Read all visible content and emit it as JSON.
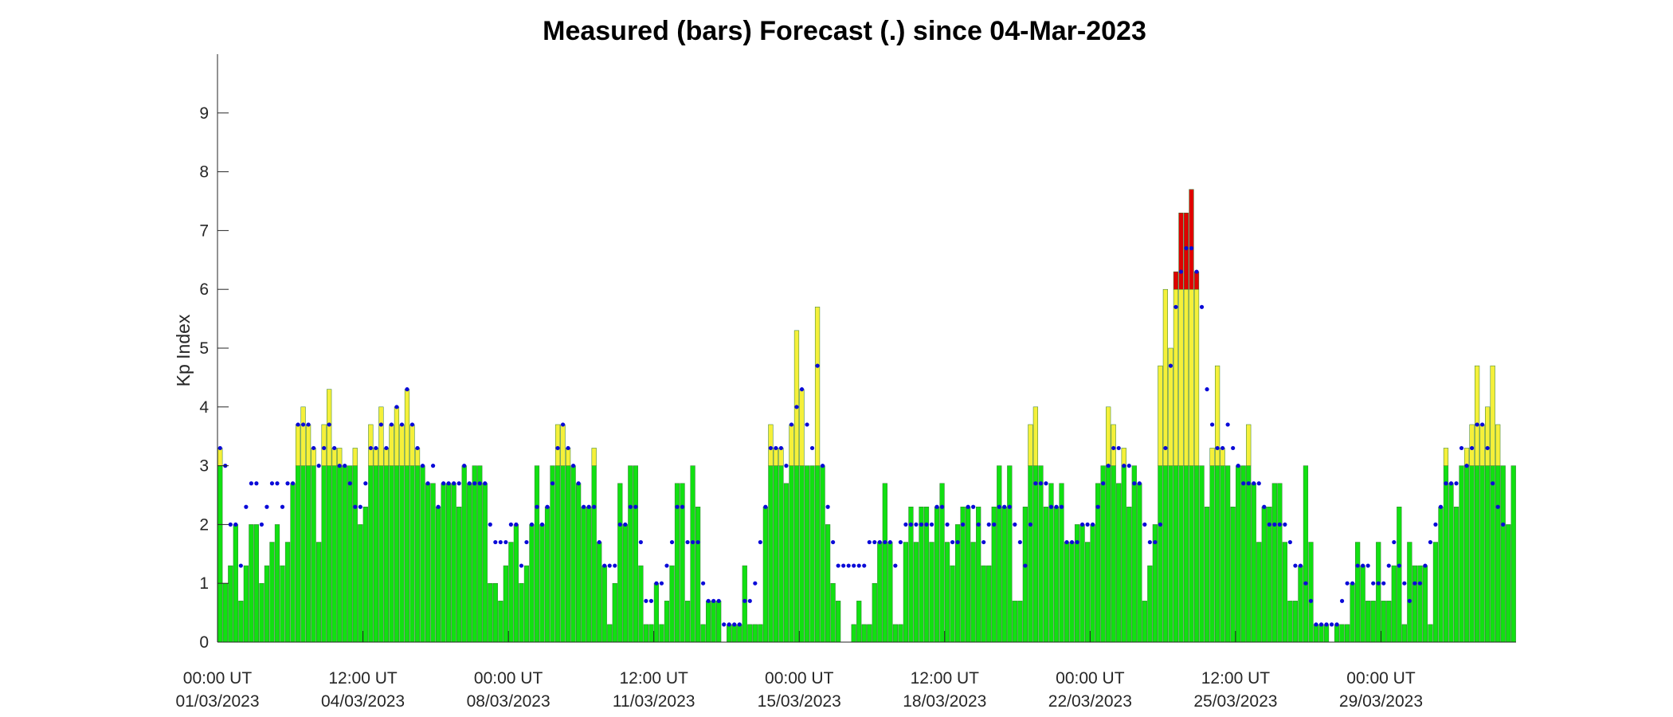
{
  "chart_data": {
    "type": "bar",
    "title": "Measured (bars) Forecast (.) since 04-Mar-2023",
    "xlabel": "",
    "ylabel": "Kp Index",
    "ylim": [
      0,
      10
    ],
    "yticks": [
      0,
      1,
      2,
      3,
      4,
      5,
      6,
      7,
      8,
      9
    ],
    "xlim_days": [
      0,
      31.25
    ],
    "x_tick_labels": [
      {
        "day": 0,
        "line1": "00:00 UT",
        "line2": "01/03/2023"
      },
      {
        "day": 3.5,
        "line1": "12:00 UT",
        "line2": "04/03/2023"
      },
      {
        "day": 7,
        "line1": "00:00 UT",
        "line2": "08/03/2023"
      },
      {
        "day": 10.5,
        "line1": "12:00 UT",
        "line2": "11/03/2023"
      },
      {
        "day": 14,
        "line1": "00:00 UT",
        "line2": "15/03/2023"
      },
      {
        "day": 17.5,
        "line1": "12:00 UT",
        "line2": "18/03/2023"
      },
      {
        "day": 21,
        "line1": "00:00 UT",
        "line2": "22/03/2023"
      },
      {
        "day": 24.5,
        "line1": "12:00 UT",
        "line2": "25/03/2023"
      },
      {
        "day": 28,
        "line1": "00:00 UT",
        "line2": "29/03/2023"
      }
    ],
    "bar_interval_hours": 3,
    "color_bands": [
      {
        "from": 0,
        "to": 3,
        "color": "#11e011"
      },
      {
        "from": 3,
        "to": 6,
        "color": "#f5f03a"
      },
      {
        "from": 6,
        "to": 10,
        "color": "#e00000"
      }
    ],
    "forecast_color": "#0a0ad8",
    "series": [
      {
        "name": "Measured",
        "values": [
          3.3,
          1,
          1.3,
          2,
          0.7,
          1.3,
          2,
          2,
          1,
          1.3,
          1.7,
          2,
          1.3,
          1.7,
          2.7,
          3.7,
          4,
          3.7,
          3.3,
          1.7,
          3.7,
          4.3,
          3.3,
          3.3,
          3,
          3,
          3.3,
          2,
          2.3,
          3.7,
          3.3,
          4,
          3.3,
          3.7,
          4,
          3.7,
          4.3,
          3.7,
          3.3,
          3,
          2.7,
          2.7,
          2.3,
          2.7,
          2.7,
          2.7,
          2.3,
          3,
          2.7,
          3,
          3,
          2.7,
          1,
          1,
          0.7,
          1.3,
          1.7,
          2,
          1,
          1.3,
          2,
          3,
          2,
          2.3,
          3,
          3.7,
          3.7,
          3.3,
          3,
          2.7,
          2.3,
          2.3,
          3.3,
          1.7,
          1.3,
          0.3,
          1,
          2.7,
          2,
          3,
          3,
          1.3,
          0.3,
          0.3,
          1,
          0.3,
          0.7,
          1.3,
          2.7,
          2.7,
          0.7,
          3,
          2.3,
          0.3,
          0.7,
          0.7,
          0.7,
          0,
          0.3,
          0.3,
          0.3,
          1.3,
          0.3,
          0.3,
          0.3,
          2.3,
          3.7,
          3.3,
          3.3,
          2.7,
          3.7,
          5.3,
          4.3,
          3,
          3,
          5.7,
          3,
          2,
          1,
          0.7,
          0,
          0,
          0.3,
          0.7,
          0.3,
          0.3,
          1,
          1.7,
          2.7,
          1.7,
          0.3,
          0.3,
          1.7,
          2.3,
          1.7,
          2.3,
          2.3,
          1.7,
          2.3,
          2.7,
          1.7,
          1.3,
          2,
          2.3,
          2.3,
          1.7,
          2.3,
          1.3,
          1.3,
          2.3,
          3,
          2.3,
          3,
          0.7,
          0.7,
          2.3,
          3.7,
          4,
          3,
          2.3,
          2.7,
          2.3,
          2.7,
          1.7,
          1.7,
          2,
          2,
          1.7,
          2,
          2.7,
          3,
          4,
          3.7,
          2.7,
          3.3,
          2.3,
          3,
          2.7,
          0.7,
          1.3,
          2,
          4.7,
          6,
          5,
          6.3,
          7.3,
          7.3,
          7.7,
          6.3,
          3,
          2.3,
          3.3,
          4.7,
          3.3,
          3,
          2.3,
          3,
          3,
          3.7,
          2.7,
          1.7,
          2.3,
          2.3,
          2.7,
          2.7,
          1.7,
          0.7,
          0.7,
          1.3,
          3,
          1.7,
          0.3,
          0.3,
          0.3,
          0,
          0.3,
          0.3,
          0.3,
          1,
          1.7,
          1.3,
          0.7,
          0.7,
          1.7,
          0.7,
          0.7,
          1.3,
          2.3,
          0.3,
          1.7,
          1.3,
          1.3,
          1.3,
          0.3,
          1.7,
          2.3,
          3.3,
          2.7,
          2.3,
          3,
          3.3,
          3.7,
          4.7,
          3.7,
          4,
          4.7,
          3.7,
          3,
          2,
          3
        ]
      },
      {
        "name": "Forecast",
        "values": [
          3.3,
          3,
          2,
          2,
          1.3,
          2.3,
          2.7,
          2.7,
          2,
          2.3,
          2.7,
          2.7,
          2.3,
          2.7,
          2.7,
          3.7,
          3.7,
          3.7,
          3.3,
          3,
          3.3,
          3.7,
          3.3,
          3,
          3,
          2.7,
          2.3,
          2.3,
          2.7,
          3.3,
          3.3,
          3.7,
          3.3,
          3.7,
          4,
          3.7,
          4.3,
          3.7,
          3.3,
          3,
          2.7,
          3,
          2.3,
          2.7,
          2.7,
          2.7,
          2.7,
          3,
          2.7,
          2.7,
          2.7,
          2.7,
          2,
          1.7,
          1.7,
          1.7,
          2,
          2,
          1.3,
          1.7,
          2,
          2.3,
          2,
          2.3,
          2.7,
          3.3,
          3.7,
          3.3,
          3,
          2.7,
          2.3,
          2.3,
          2.3,
          1.7,
          1.3,
          1.3,
          1.3,
          2,
          2,
          2.3,
          2.3,
          1.7,
          0.7,
          0.7,
          1,
          1,
          1.3,
          1.7,
          2.3,
          2.3,
          1.7,
          1.7,
          1.7,
          1,
          0.7,
          0.7,
          0.7,
          0.3,
          0.3,
          0.3,
          0.3,
          0.7,
          0.7,
          1,
          1.7,
          2.3,
          3.3,
          3.3,
          3.3,
          3,
          3.7,
          4,
          4.3,
          3.7,
          3.3,
          4.7,
          3,
          2.3,
          1.7,
          1.3,
          1.3,
          1.3,
          1.3,
          1.3,
          1.3,
          1.7,
          1.7,
          1.7,
          1.7,
          1.7,
          1.3,
          1.7,
          2,
          2,
          2,
          2,
          2,
          2,
          2.3,
          2.3,
          2,
          1.7,
          1.7,
          2,
          2.3,
          2.3,
          2,
          1.7,
          2,
          2,
          2.3,
          2.3,
          2.3,
          2,
          1.7,
          1.3,
          2,
          2.7,
          2.7,
          2.7,
          2.3,
          2.3,
          2.3,
          1.7,
          1.7,
          1.7,
          2,
          2,
          2,
          2.3,
          2.7,
          3,
          3.3,
          3.3,
          3,
          3,
          2.7,
          2.7,
          2,
          1.7,
          1.7,
          2,
          3.3,
          4.7,
          5.7,
          6.3,
          6.7,
          6.7,
          6.3,
          5.7,
          4.3,
          3.7,
          3.3,
          3.3,
          3.7,
          3.3,
          3,
          2.7,
          2.7,
          2.7,
          2.7,
          2.3,
          2,
          2,
          2,
          2,
          1.7,
          1.3,
          1.3,
          1,
          0.7,
          0.3,
          0.3,
          0.3,
          0.3,
          0.3,
          0.7,
          1,
          1,
          1.3,
          1.3,
          1.3,
          1,
          1,
          1,
          1.3,
          1.7,
          1.3,
          1,
          0.7,
          1,
          1,
          1.3,
          1.7,
          2,
          2.3,
          2.7,
          2.7,
          2.7,
          3.3,
          3,
          3.3,
          3.7,
          3.7,
          3.3,
          2.7,
          2.3,
          2
        ]
      }
    ]
  }
}
